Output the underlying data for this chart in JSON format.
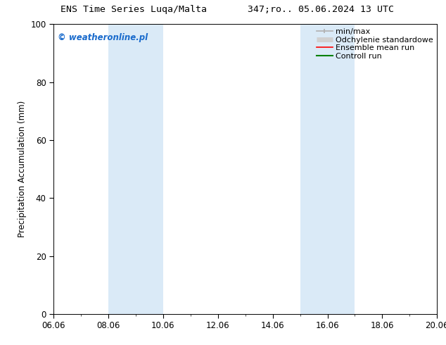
{
  "title_left": "ENS Time Series Luqa/Malta",
  "title_right": "347;ro.. 05.06.2024 13 UTC",
  "ylabel": "Precipitation Accumulation (mm)",
  "watermark": "© weatheronline.pl",
  "watermark_color": "#1a6bcc",
  "ylim": [
    0,
    100
  ],
  "yticks": [
    0,
    20,
    40,
    60,
    80,
    100
  ],
  "xlim": [
    0,
    14
  ],
  "xtick_labels": [
    "06.06",
    "08.06",
    "10.06",
    "12.06",
    "14.06",
    "16.06",
    "18.06",
    "20.06"
  ],
  "xtick_positions": [
    0,
    2,
    4,
    6,
    8,
    10,
    12,
    14
  ],
  "shaded_regions": [
    {
      "x_start": 2,
      "x_end": 4,
      "color": "#daeaf7"
    },
    {
      "x_start": 9,
      "x_end": 11,
      "color": "#daeaf7"
    }
  ],
  "legend_items": [
    {
      "label": "min/max",
      "color": "#b0b0b0",
      "lw": 1.2,
      "style": "line_with_caps"
    },
    {
      "label": "Odchylenie standardowe",
      "color": "#d0d0d0",
      "lw": 5,
      "style": "thick_line"
    },
    {
      "label": "Ensemble mean run",
      "color": "#ff0000",
      "lw": 1.2,
      "style": "line"
    },
    {
      "label": "Controll run",
      "color": "#008000",
      "lw": 1.5,
      "style": "line"
    }
  ],
  "bg_color": "#ffffff",
  "plot_bg_color": "#ffffff",
  "font_size": 8.5,
  "title_font_size": 9.5
}
